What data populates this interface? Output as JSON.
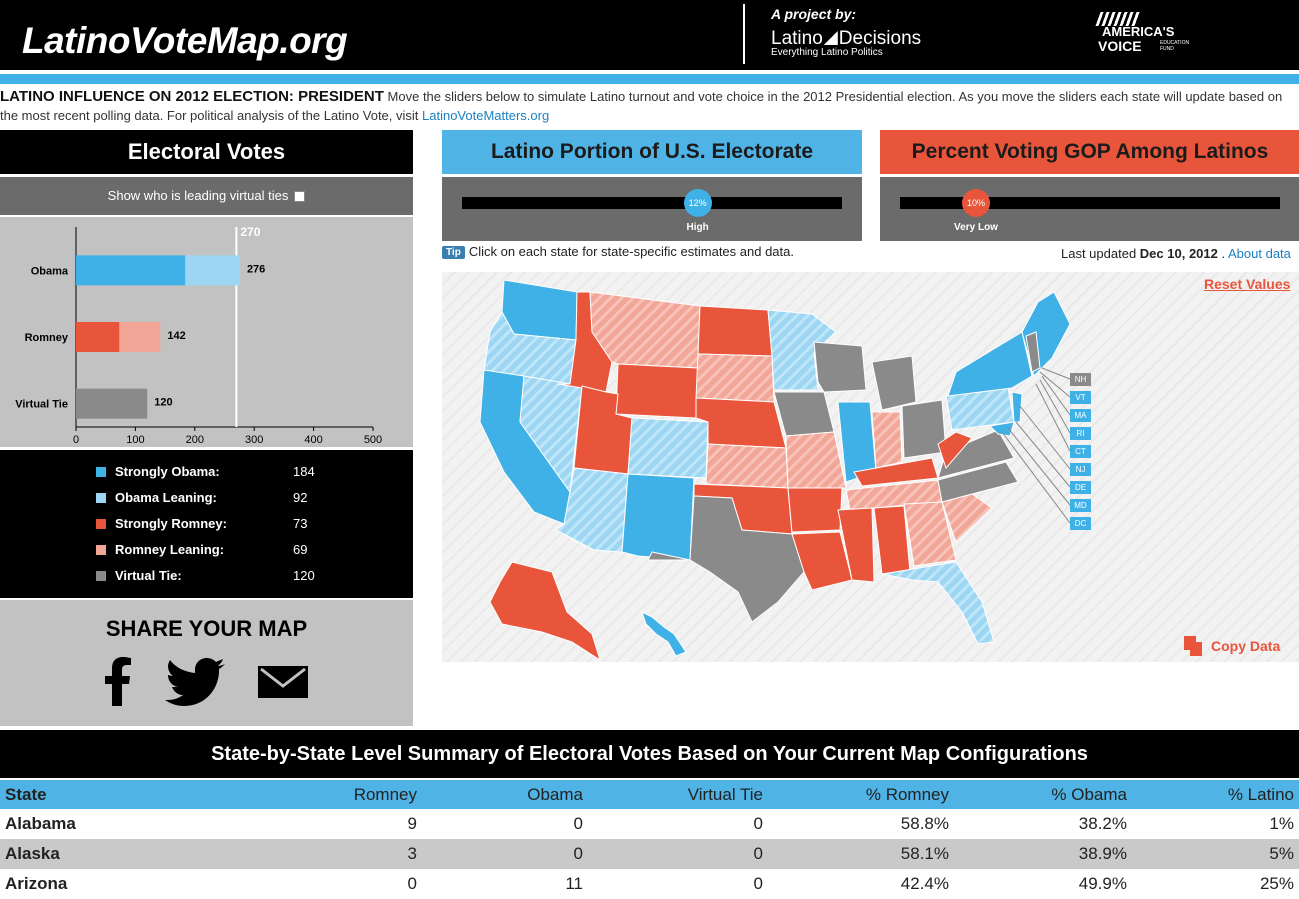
{
  "header": {
    "logo": "LatinoVoteMap.org",
    "project_by": "A project by:",
    "ld_left": "Latino",
    "ld_right": "Decisions",
    "ld_sub": "Everything Latino Politics",
    "av_line1": "AMERICA'S",
    "av_line2": "VOICE",
    "av_small": "EDUCATION FUND"
  },
  "intro": {
    "title": "LATINO INFLUENCE ON 2012 ELECTION: PRESIDENT",
    "text": " Move the sliders below to simulate Latino turnout and vote choice in the 2012 Presidential election. As you move the sliders each state will update based on the most recent polling data. For political analysis of the Latino Vote, visit ",
    "link": "LatinoVoteMatters.org"
  },
  "electoral": {
    "title": "Electoral Votes",
    "ties_label": "Show who is leading virtual ties",
    "threshold_label": "270"
  },
  "chart_data": {
    "type": "bar",
    "orientation": "horizontal",
    "categories": [
      "Obama",
      "Romney",
      "Virtual Tie"
    ],
    "series": [
      {
        "name": "Strongly",
        "values": [
          184,
          73,
          120
        ]
      },
      {
        "name": "Leaning",
        "values": [
          92,
          69,
          0
        ]
      }
    ],
    "totals": [
      276,
      142,
      120
    ],
    "threshold": 270,
    "xlim": [
      0,
      500
    ],
    "xticks": [
      0,
      100,
      200,
      300,
      400,
      500
    ],
    "colors": {
      "obama_strong": "#3fb1e6",
      "obama_lean": "#9dd6f3",
      "romney_strong": "#e9553b",
      "romney_lean": "#f2a697",
      "tie": "#8a8a8a"
    }
  },
  "legend": [
    {
      "label": "Strongly Obama:",
      "value": "184",
      "color": "#3fb1e6"
    },
    {
      "label": "Obama Leaning:",
      "value": "92",
      "color": "#9dd6f3"
    },
    {
      "label": "Strongly Romney:",
      "value": "73",
      "color": "#e9553b"
    },
    {
      "label": "Romney Leaning:",
      "value": "69",
      "color": "#f2a697"
    },
    {
      "label": "Virtual Tie:",
      "value": "120",
      "color": "#8a8a8a"
    }
  ],
  "share": {
    "title": "SHARE YOUR MAP"
  },
  "sliders": {
    "latino": {
      "title": "Latino Portion of U.S. Electorate",
      "value": "12%",
      "label": "High",
      "fraction": 0.62,
      "color": "#3fb1e6"
    },
    "gop": {
      "title": "Percent Voting GOP Among Latinos",
      "value": "10%",
      "label": "Very Low",
      "fraction": 0.2,
      "color": "#e9553b"
    }
  },
  "tip": {
    "badge": "Tip",
    "text": "Click on each state for state-specific estimates and data."
  },
  "updated": {
    "prefix": "Last updated ",
    "date": "Dec 10, 2012",
    "sep": " . ",
    "about": "About data"
  },
  "map": {
    "reset": "Reset Values",
    "copy": "Copy Data",
    "small_states": [
      {
        "abbr": "NH",
        "color": "#8a8a8a"
      },
      {
        "abbr": "VT",
        "color": "#3fb1e6"
      },
      {
        "abbr": "MA",
        "color": "#3fb1e6"
      },
      {
        "abbr": "RI",
        "color": "#3fb1e6"
      },
      {
        "abbr": "CT",
        "color": "#3fb1e6"
      },
      {
        "abbr": "NJ",
        "color": "#3fb1e6"
      },
      {
        "abbr": "DE",
        "color": "#3fb1e6"
      },
      {
        "abbr": "MD",
        "color": "#3fb1e6"
      },
      {
        "abbr": "DC",
        "color": "#3fb1e6"
      }
    ]
  },
  "table": {
    "title": "State-by-State Level Summary of Electoral Votes Based on Your Current Map Configurations",
    "columns": [
      "State",
      "Romney",
      "Obama",
      "Virtual Tie",
      "% Romney",
      "% Obama",
      "% Latino"
    ],
    "rows": [
      [
        "Alabama",
        "9",
        "0",
        "0",
        "58.8%",
        "38.2%",
        "1%"
      ],
      [
        "Alaska",
        "3",
        "0",
        "0",
        "58.1%",
        "38.9%",
        "5%"
      ],
      [
        "Arizona",
        "0",
        "11",
        "0",
        "42.4%",
        "49.9%",
        "25%"
      ]
    ]
  }
}
